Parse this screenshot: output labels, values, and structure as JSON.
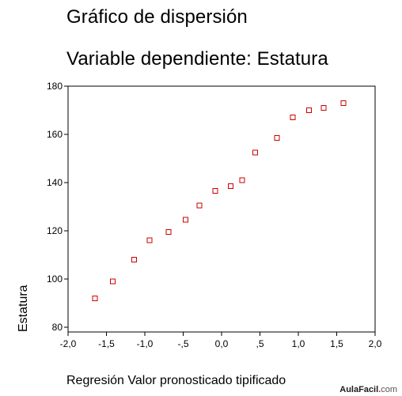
{
  "chart_data": {
    "type": "scatter",
    "title": "Gráfico de dispersión",
    "subtitle": "Variable dependiente: Estatura",
    "xlabel": "Regresión Valor pronosticado tipificado",
    "ylabel": "Estatura",
    "xlim": [
      -2.0,
      2.0
    ],
    "ylim": [
      78,
      180
    ],
    "x_ticks": [
      -2.0,
      -1.5,
      -1.0,
      -0.5,
      0.0,
      0.5,
      1.0,
      1.5,
      2.0
    ],
    "x_tick_labels": [
      "-2,0",
      "-1,5",
      "-1,0",
      "-,5",
      "0,0",
      ",5",
      "1,0",
      "1,5",
      "2,0"
    ],
    "y_ticks": [
      80,
      100,
      120,
      140,
      160,
      180
    ],
    "y_tick_labels": [
      "80",
      "100",
      "120",
      "140",
      "160",
      "180"
    ],
    "grid": false,
    "legend": "none",
    "marker": "open-square",
    "marker_color": "#cc0000",
    "points": [
      {
        "x": -1.65,
        "y": 92
      },
      {
        "x": -1.42,
        "y": 99
      },
      {
        "x": -1.14,
        "y": 108
      },
      {
        "x": -0.94,
        "y": 116
      },
      {
        "x": -0.69,
        "y": 119.5
      },
      {
        "x": -0.47,
        "y": 124.5
      },
      {
        "x": -0.29,
        "y": 130.5
      },
      {
        "x": -0.08,
        "y": 136.5
      },
      {
        "x": 0.12,
        "y": 138.5
      },
      {
        "x": 0.27,
        "y": 141
      },
      {
        "x": 0.44,
        "y": 152.5
      },
      {
        "x": 0.72,
        "y": 158.5
      },
      {
        "x": 0.93,
        "y": 167
      },
      {
        "x": 1.14,
        "y": 170
      },
      {
        "x": 1.33,
        "y": 171
      },
      {
        "x": 1.59,
        "y": 173
      }
    ]
  },
  "watermark": {
    "brand": "AulaFacil",
    "dot": ".",
    "tld": "com"
  }
}
